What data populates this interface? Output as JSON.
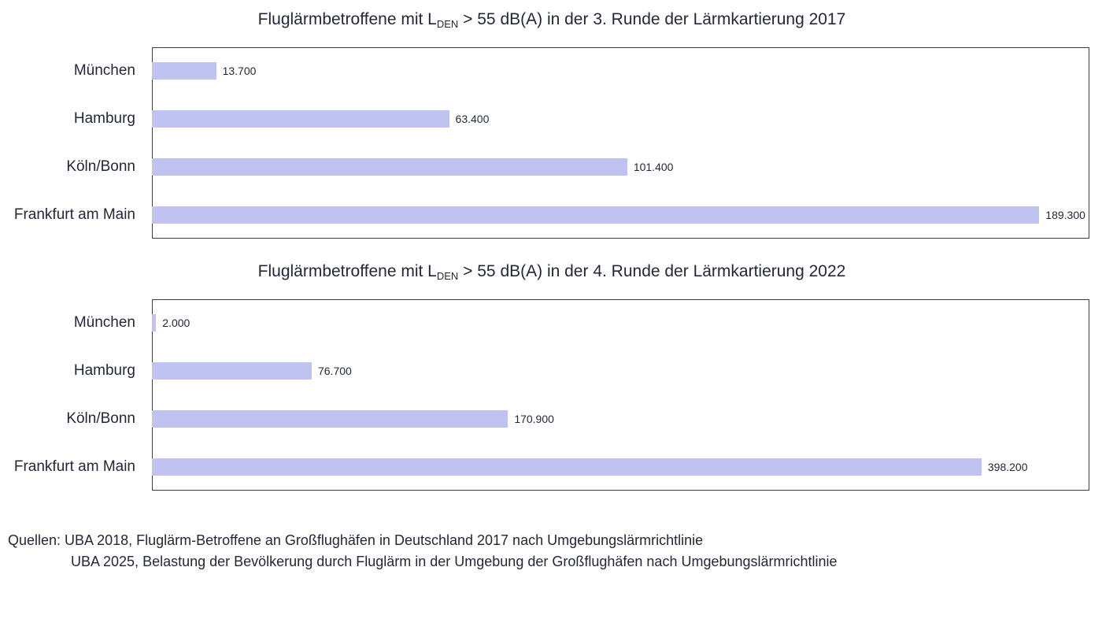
{
  "chart_data": [
    {
      "type": "bar",
      "orientation": "horizontal",
      "title_prefix": "Fluglärmbetroffene mit L",
      "title_subscript": "DEN",
      "title_suffix": " > 55 dB(A) in der 3. Runde der Lärmkartierung 2017",
      "categories": [
        "München",
        "Hamburg",
        "Köln/Bonn",
        "Frankfurt am Main"
      ],
      "values": [
        13700,
        63400,
        101400,
        189300
      ],
      "labels": [
        "13.700",
        "63.400",
        "101.400",
        "189.300"
      ],
      "xlim": [
        0,
        200000
      ],
      "grid": false,
      "bar_color": "#c0c2f0"
    },
    {
      "type": "bar",
      "orientation": "horizontal",
      "title_prefix": "Fluglärmbetroffene mit L",
      "title_subscript": "DEN",
      "title_suffix": " > 55 dB(A) in der 4. Runde der Lärmkartierung 2022",
      "categories": [
        "München",
        "Hamburg",
        "Köln/Bonn",
        "Frankfurt am Main"
      ],
      "values": [
        2000,
        76700,
        170900,
        398200
      ],
      "labels": [
        "2.000",
        "76.700",
        "170.900",
        "398.200"
      ],
      "xlim": [
        0,
        450000
      ],
      "grid": false,
      "bar_color": "#c0c2f0"
    }
  ],
  "sources": {
    "line1": "Quellen: UBA 2018, Fluglärm-Betroffene an Großflughäfen in Deutschland 2017 nach Umgebungslärmrichtlinie",
    "line2": "UBA 2025, Belastung der Bevölkerung durch Fluglärm in der Umgebung der Großflughäfen nach Umgebungslärmrichtlinie"
  }
}
